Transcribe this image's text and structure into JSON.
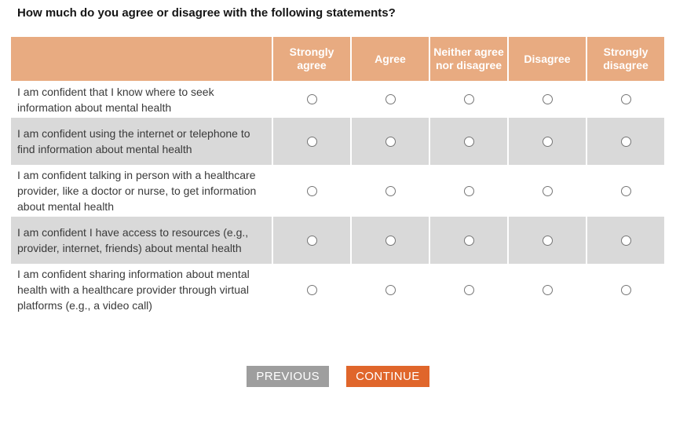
{
  "page": {
    "question": "How much do you agree or disagree with the following statements?"
  },
  "table": {
    "columns": [
      "Strongly agree",
      "Agree",
      "Neither agree nor disagree",
      "Disagree",
      "Strongly disagree"
    ],
    "rows": [
      {
        "statement": "I am confident that I know where to seek information about mental health"
      },
      {
        "statement": "I am confident using the internet or telephone to find information about mental health"
      },
      {
        "statement": "I am confident talking in person with a healthcare provider, like a doctor or nurse, to get information about mental health"
      },
      {
        "statement": "I am confident I have access to resources (e.g., provider, internet, friends) about mental health"
      },
      {
        "statement": "I am confident sharing information about mental health with a healthcare provider through virtual platforms (e.g., a video call)"
      }
    ],
    "radio_state": "unselected"
  },
  "buttons": {
    "previous_label": "PREVIOUS",
    "continue_label": "CONTINUE"
  },
  "colors": {
    "header_bg": "#e8ab81",
    "alt_row_bg": "#d9d9d9",
    "previous_bg": "#9e9e9e",
    "continue_bg": "#e0662b",
    "radio_border": "#767676"
  }
}
